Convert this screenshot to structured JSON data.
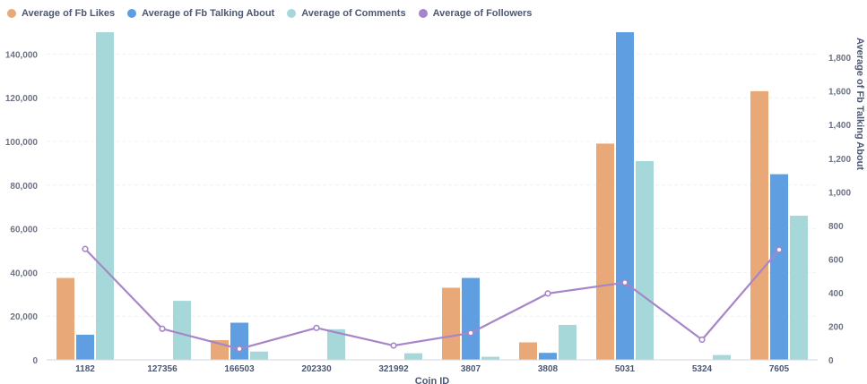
{
  "chart_data": {
    "type": "bar",
    "categories": [
      "1182",
      "127356",
      "166503",
      "202330",
      "321992",
      "3807",
      "3808",
      "5031",
      "5324",
      "7605"
    ],
    "xlabel": "Coin ID",
    "ylabel_right": "Average of Fb Talking About",
    "ylim_left": [
      0,
      150000
    ],
    "ylim_right": [
      0,
      1950
    ],
    "left_ticks": [
      0,
      20000,
      40000,
      60000,
      80000,
      100000,
      120000,
      140000
    ],
    "left_tick_labels": [
      "0",
      "20,000",
      "40,000",
      "60,000",
      "80,000",
      "100,000",
      "120,000",
      "140,000"
    ],
    "right_ticks": [
      0,
      200,
      400,
      600,
      800,
      1000,
      1200,
      1400,
      1600,
      1800
    ],
    "right_tick_labels": [
      "0",
      "200",
      "400",
      "600",
      "800",
      "1,000",
      "1,200",
      "1,400",
      "1,600",
      "1,800"
    ],
    "legend_position": "top-left",
    "grid": true,
    "series": [
      {
        "name": "Average of Fb Likes",
        "kind": "bar",
        "axis": "left",
        "color": "#e9a877",
        "values": [
          37500,
          0,
          9000,
          0,
          0,
          33000,
          8000,
          99000,
          0,
          123000
        ]
      },
      {
        "name": "Average of Fb Talking About",
        "kind": "bar",
        "axis": "left",
        "color": "#5f9ee0",
        "values": [
          11500,
          0,
          17000,
          0,
          0,
          37500,
          3200,
          150000,
          0,
          85000
        ]
      },
      {
        "name": "Average of Comments",
        "kind": "bar",
        "axis": "left",
        "color": "#a6d8da",
        "values": [
          150000,
          27000,
          3800,
          14000,
          3000,
          1400,
          16000,
          91000,
          2200,
          66000
        ]
      },
      {
        "name": "Average of Followers",
        "kind": "line",
        "axis": "right",
        "color": "#a686c8",
        "values": [
          660,
          185,
          65,
          190,
          85,
          160,
          395,
          460,
          120,
          655
        ]
      }
    ]
  }
}
